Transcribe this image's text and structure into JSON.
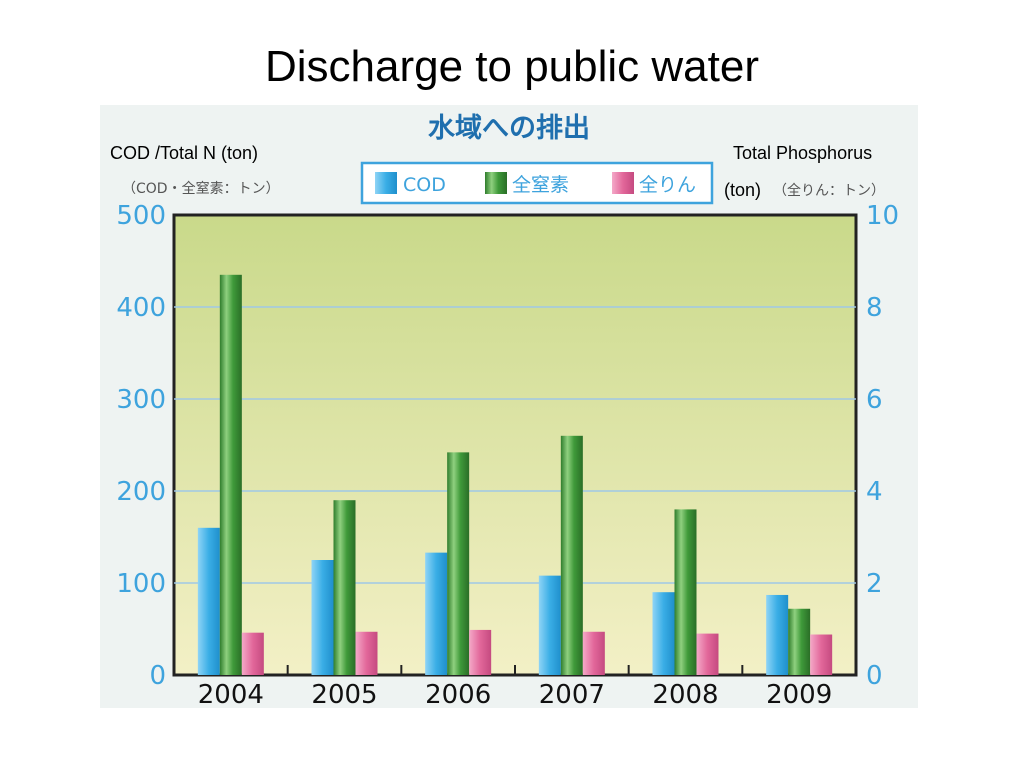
{
  "slide": {
    "title": "Discharge to public water"
  },
  "overlay": {
    "left_axis_en": "COD /Total N (ton)",
    "right_axis_en_line1": "Total Phosphorus",
    "right_axis_en_line2": "(ton)"
  },
  "colors": {
    "plot_bg_top": "#c9d98a",
    "plot_bg_bottom": "#f3f0c6",
    "cod": "#3aaee6",
    "nitrogen": "#3f9a3a",
    "phosphorus": "#e2679a",
    "axis_text": "#3ea3dd",
    "gridline": "#9fc8e6"
  },
  "chart_data": {
    "type": "bar",
    "title": "水域への排出",
    "categories": [
      "2004",
      "2005",
      "2006",
      "2007",
      "2008",
      "2009"
    ],
    "series": [
      {
        "name": "COD",
        "axis": "left",
        "values": [
          160,
          125,
          133,
          108,
          90,
          87
        ]
      },
      {
        "name": "全窒素",
        "axis": "left",
        "values": [
          435,
          190,
          242,
          260,
          180,
          72
        ]
      },
      {
        "name": "全りん",
        "axis": "right",
        "values": [
          0.92,
          0.94,
          0.98,
          0.94,
          0.9,
          0.88
        ]
      }
    ],
    "y_left": {
      "label": "（COD・全窒素：トン）",
      "ylim": [
        0,
        500
      ],
      "ticks": [
        0,
        100,
        200,
        300,
        400,
        500
      ]
    },
    "y_right": {
      "label": "（全りん：トン）",
      "ylim": [
        0,
        10
      ],
      "ticks": [
        0,
        2,
        4,
        6,
        8,
        10
      ]
    },
    "grid": true,
    "legend": "top-center"
  }
}
